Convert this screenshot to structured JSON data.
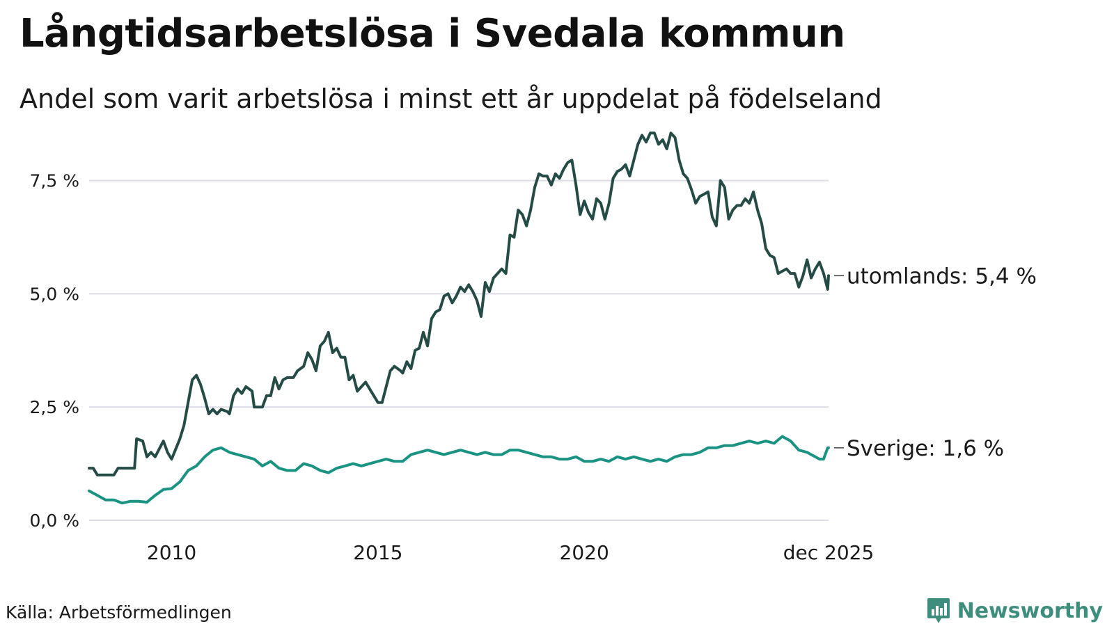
{
  "title": "Långtidsarbetslösa i Svedala kommun",
  "subtitle": "Andel som varit arbetslösa i minst ett år uppdelat på födelseland",
  "source": "Källa: Arbetsförmedlingen",
  "brand": {
    "name": "Newsworthy",
    "icon": "newsworthy-logo-icon",
    "color": "#3e8e7e"
  },
  "chart_data": {
    "type": "line",
    "ylabel": "",
    "xlabel": "",
    "ylim": [
      0,
      8.6
    ],
    "xlim": [
      2008.0,
      2025.92
    ],
    "y_ticks": [
      {
        "value": 0,
        "label": "0,0 %"
      },
      {
        "value": 2.5,
        "label": "2,5 %"
      },
      {
        "value": 5.0,
        "label": "5,0 %"
      },
      {
        "value": 7.5,
        "label": "7,5 %"
      }
    ],
    "x_ticks": [
      {
        "value": 2010,
        "label": "2010"
      },
      {
        "value": 2015,
        "label": "2015"
      },
      {
        "value": 2020,
        "label": "2020"
      },
      {
        "value": 2025.92,
        "label": "dec 2025"
      }
    ],
    "grid": true,
    "series": [
      {
        "name": "utomlands",
        "end_label": "utomlands: 5,4 %",
        "color": "#244b45",
        "points": [
          [
            2008.0,
            1.15
          ],
          [
            2008.1,
            1.15
          ],
          [
            2008.2,
            1.0
          ],
          [
            2008.5,
            1.0
          ],
          [
            2008.6,
            1.0
          ],
          [
            2008.7,
            1.15
          ],
          [
            2009.0,
            1.15
          ],
          [
            2009.1,
            1.15
          ],
          [
            2009.15,
            1.8
          ],
          [
            2009.3,
            1.75
          ],
          [
            2009.4,
            1.4
          ],
          [
            2009.5,
            1.5
          ],
          [
            2009.6,
            1.4
          ],
          [
            2009.8,
            1.75
          ],
          [
            2009.9,
            1.5
          ],
          [
            2010.0,
            1.35
          ],
          [
            2010.2,
            1.8
          ],
          [
            2010.3,
            2.1
          ],
          [
            2010.4,
            2.6
          ],
          [
            2010.5,
            3.1
          ],
          [
            2010.6,
            3.2
          ],
          [
            2010.7,
            3.0
          ],
          [
            2010.8,
            2.7
          ],
          [
            2010.9,
            2.35
          ],
          [
            2011.0,
            2.45
          ],
          [
            2011.1,
            2.35
          ],
          [
            2011.2,
            2.45
          ],
          [
            2011.35,
            2.4
          ],
          [
            2011.4,
            2.35
          ],
          [
            2011.5,
            2.75
          ],
          [
            2011.6,
            2.9
          ],
          [
            2011.7,
            2.8
          ],
          [
            2011.8,
            2.95
          ],
          [
            2011.95,
            2.85
          ],
          [
            2012.0,
            2.5
          ],
          [
            2012.2,
            2.5
          ],
          [
            2012.3,
            2.75
          ],
          [
            2012.4,
            2.75
          ],
          [
            2012.5,
            3.15
          ],
          [
            2012.6,
            2.9
          ],
          [
            2012.7,
            3.1
          ],
          [
            2012.8,
            3.15
          ],
          [
            2012.95,
            3.15
          ],
          [
            2013.05,
            3.3
          ],
          [
            2013.2,
            3.4
          ],
          [
            2013.3,
            3.7
          ],
          [
            2013.4,
            3.55
          ],
          [
            2013.5,
            3.3
          ],
          [
            2013.6,
            3.85
          ],
          [
            2013.7,
            3.95
          ],
          [
            2013.8,
            4.15
          ],
          [
            2013.9,
            3.7
          ],
          [
            2014.0,
            3.8
          ],
          [
            2014.1,
            3.6
          ],
          [
            2014.2,
            3.6
          ],
          [
            2014.3,
            3.1
          ],
          [
            2014.4,
            3.2
          ],
          [
            2014.5,
            2.85
          ],
          [
            2014.7,
            3.05
          ],
          [
            2014.8,
            2.9
          ],
          [
            2014.9,
            2.75
          ],
          [
            2015.0,
            2.6
          ],
          [
            2015.1,
            2.6
          ],
          [
            2015.2,
            2.95
          ],
          [
            2015.3,
            3.3
          ],
          [
            2015.4,
            3.4
          ],
          [
            2015.55,
            3.3
          ],
          [
            2015.6,
            3.25
          ],
          [
            2015.7,
            3.5
          ],
          [
            2015.8,
            3.35
          ],
          [
            2015.9,
            3.75
          ],
          [
            2016.0,
            3.8
          ],
          [
            2016.1,
            4.15
          ],
          [
            2016.2,
            3.85
          ],
          [
            2016.3,
            4.45
          ],
          [
            2016.4,
            4.6
          ],
          [
            2016.5,
            4.65
          ],
          [
            2016.6,
            4.95
          ],
          [
            2016.7,
            5.0
          ],
          [
            2016.8,
            4.8
          ],
          [
            2016.9,
            4.95
          ],
          [
            2017.0,
            5.15
          ],
          [
            2017.1,
            5.05
          ],
          [
            2017.2,
            5.2
          ],
          [
            2017.3,
            5.05
          ],
          [
            2017.4,
            4.85
          ],
          [
            2017.5,
            4.5
          ],
          [
            2017.6,
            5.25
          ],
          [
            2017.7,
            5.05
          ],
          [
            2017.8,
            5.35
          ],
          [
            2017.9,
            5.45
          ],
          [
            2018.0,
            5.55
          ],
          [
            2018.1,
            5.45
          ],
          [
            2018.2,
            6.3
          ],
          [
            2018.3,
            6.25
          ],
          [
            2018.4,
            6.85
          ],
          [
            2018.5,
            6.75
          ],
          [
            2018.6,
            6.5
          ],
          [
            2018.7,
            6.85
          ],
          [
            2018.8,
            7.35
          ],
          [
            2018.9,
            7.65
          ],
          [
            2019.0,
            7.6
          ],
          [
            2019.1,
            7.6
          ],
          [
            2019.2,
            7.4
          ],
          [
            2019.3,
            7.65
          ],
          [
            2019.4,
            7.55
          ],
          [
            2019.5,
            7.75
          ],
          [
            2019.6,
            7.9
          ],
          [
            2019.7,
            7.95
          ],
          [
            2019.8,
            7.4
          ],
          [
            2019.9,
            6.75
          ],
          [
            2020.0,
            7.05
          ],
          [
            2020.1,
            6.8
          ],
          [
            2020.2,
            6.65
          ],
          [
            2020.3,
            7.1
          ],
          [
            2020.4,
            7.0
          ],
          [
            2020.5,
            6.65
          ],
          [
            2020.6,
            7.0
          ],
          [
            2020.7,
            7.55
          ],
          [
            2020.8,
            7.7
          ],
          [
            2020.9,
            7.75
          ],
          [
            2021.0,
            7.85
          ],
          [
            2021.1,
            7.6
          ],
          [
            2021.2,
            7.95
          ],
          [
            2021.3,
            8.3
          ],
          [
            2021.4,
            8.5
          ],
          [
            2021.5,
            8.35
          ],
          [
            2021.6,
            8.55
          ],
          [
            2021.7,
            8.55
          ],
          [
            2021.8,
            8.3
          ],
          [
            2021.9,
            8.4
          ],
          [
            2022.0,
            8.2
          ],
          [
            2022.1,
            8.55
          ],
          [
            2022.2,
            8.45
          ],
          [
            2022.3,
            7.95
          ],
          [
            2022.4,
            7.65
          ],
          [
            2022.5,
            7.55
          ],
          [
            2022.6,
            7.3
          ],
          [
            2022.7,
            7.0
          ],
          [
            2022.8,
            7.15
          ],
          [
            2022.9,
            7.2
          ],
          [
            2023.0,
            7.25
          ],
          [
            2023.1,
            6.7
          ],
          [
            2023.2,
            6.5
          ],
          [
            2023.3,
            7.5
          ],
          [
            2023.4,
            7.35
          ],
          [
            2023.5,
            6.65
          ],
          [
            2023.6,
            6.85
          ],
          [
            2023.7,
            6.95
          ],
          [
            2023.8,
            6.95
          ],
          [
            2023.9,
            7.1
          ],
          [
            2024.0,
            7.0
          ],
          [
            2024.1,
            7.25
          ],
          [
            2024.2,
            6.85
          ],
          [
            2024.3,
            6.55
          ],
          [
            2024.4,
            6.0
          ],
          [
            2024.5,
            5.85
          ],
          [
            2024.6,
            5.8
          ],
          [
            2024.7,
            5.45
          ],
          [
            2024.8,
            5.5
          ],
          [
            2024.9,
            5.55
          ],
          [
            2025.0,
            5.45
          ],
          [
            2025.1,
            5.45
          ],
          [
            2025.2,
            5.15
          ],
          [
            2025.3,
            5.4
          ],
          [
            2025.4,
            5.75
          ],
          [
            2025.5,
            5.35
          ],
          [
            2025.6,
            5.55
          ],
          [
            2025.7,
            5.7
          ],
          [
            2025.8,
            5.45
          ],
          [
            2025.9,
            5.1
          ],
          [
            2025.92,
            5.4
          ]
        ]
      },
      {
        "name": "Sverige",
        "end_label": "Sverige: 1,6 %",
        "color": "#1a9383",
        "points": [
          [
            2008.0,
            0.65
          ],
          [
            2008.2,
            0.55
          ],
          [
            2008.4,
            0.45
          ],
          [
            2008.6,
            0.45
          ],
          [
            2008.8,
            0.38
          ],
          [
            2009.0,
            0.42
          ],
          [
            2009.2,
            0.42
          ],
          [
            2009.4,
            0.4
          ],
          [
            2009.6,
            0.55
          ],
          [
            2009.8,
            0.68
          ],
          [
            2010.0,
            0.7
          ],
          [
            2010.2,
            0.85
          ],
          [
            2010.4,
            1.1
          ],
          [
            2010.6,
            1.2
          ],
          [
            2010.8,
            1.4
          ],
          [
            2011.0,
            1.55
          ],
          [
            2011.2,
            1.6
          ],
          [
            2011.4,
            1.5
          ],
          [
            2011.6,
            1.45
          ],
          [
            2011.8,
            1.4
          ],
          [
            2012.0,
            1.35
          ],
          [
            2012.2,
            1.2
          ],
          [
            2012.4,
            1.3
          ],
          [
            2012.6,
            1.15
          ],
          [
            2012.8,
            1.1
          ],
          [
            2013.0,
            1.1
          ],
          [
            2013.2,
            1.25
          ],
          [
            2013.4,
            1.2
          ],
          [
            2013.6,
            1.1
          ],
          [
            2013.8,
            1.05
          ],
          [
            2014.0,
            1.15
          ],
          [
            2014.2,
            1.2
          ],
          [
            2014.4,
            1.25
          ],
          [
            2014.6,
            1.2
          ],
          [
            2014.8,
            1.25
          ],
          [
            2015.0,
            1.3
          ],
          [
            2015.2,
            1.35
          ],
          [
            2015.4,
            1.3
          ],
          [
            2015.6,
            1.3
          ],
          [
            2015.8,
            1.45
          ],
          [
            2016.0,
            1.5
          ],
          [
            2016.2,
            1.55
          ],
          [
            2016.4,
            1.5
          ],
          [
            2016.6,
            1.45
          ],
          [
            2016.8,
            1.5
          ],
          [
            2017.0,
            1.55
          ],
          [
            2017.2,
            1.5
          ],
          [
            2017.4,
            1.45
          ],
          [
            2017.6,
            1.5
          ],
          [
            2017.8,
            1.45
          ],
          [
            2018.0,
            1.45
          ],
          [
            2018.2,
            1.55
          ],
          [
            2018.4,
            1.55
          ],
          [
            2018.6,
            1.5
          ],
          [
            2018.8,
            1.45
          ],
          [
            2019.0,
            1.4
          ],
          [
            2019.2,
            1.4
          ],
          [
            2019.4,
            1.35
          ],
          [
            2019.6,
            1.35
          ],
          [
            2019.8,
            1.4
          ],
          [
            2020.0,
            1.3
          ],
          [
            2020.2,
            1.3
          ],
          [
            2020.4,
            1.35
          ],
          [
            2020.6,
            1.3
          ],
          [
            2020.8,
            1.4
          ],
          [
            2021.0,
            1.35
          ],
          [
            2021.2,
            1.4
          ],
          [
            2021.4,
            1.35
          ],
          [
            2021.6,
            1.3
          ],
          [
            2021.8,
            1.35
          ],
          [
            2022.0,
            1.3
          ],
          [
            2022.2,
            1.4
          ],
          [
            2022.4,
            1.45
          ],
          [
            2022.6,
            1.45
          ],
          [
            2022.8,
            1.5
          ],
          [
            2023.0,
            1.6
          ],
          [
            2023.2,
            1.6
          ],
          [
            2023.4,
            1.65
          ],
          [
            2023.6,
            1.65
          ],
          [
            2023.8,
            1.7
          ],
          [
            2024.0,
            1.75
          ],
          [
            2024.2,
            1.7
          ],
          [
            2024.4,
            1.75
          ],
          [
            2024.6,
            1.7
          ],
          [
            2024.8,
            1.85
          ],
          [
            2025.0,
            1.75
          ],
          [
            2025.2,
            1.55
          ],
          [
            2025.4,
            1.5
          ],
          [
            2025.5,
            1.45
          ],
          [
            2025.6,
            1.4
          ],
          [
            2025.7,
            1.35
          ],
          [
            2025.8,
            1.35
          ],
          [
            2025.9,
            1.6
          ],
          [
            2025.92,
            1.6
          ]
        ]
      }
    ]
  }
}
